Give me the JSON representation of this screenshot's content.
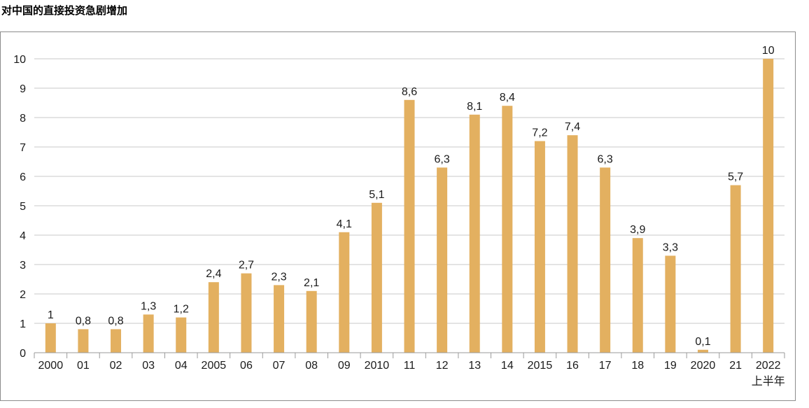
{
  "chart_data": {
    "type": "bar",
    "title": "对中国的直接投资急剧增加",
    "categories": [
      "2000",
      "01",
      "02",
      "03",
      "04",
      "2005",
      "06",
      "07",
      "08",
      "09",
      "2010",
      "11",
      "12",
      "13",
      "14",
      "2015",
      "16",
      "17",
      "18",
      "19",
      "2020",
      "21",
      "2022"
    ],
    "category_sublabels": {
      "22": "上半年"
    },
    "values": [
      1,
      0.8,
      0.8,
      1.3,
      1.2,
      2.4,
      2.7,
      2.3,
      2.1,
      4.1,
      5.1,
      8.6,
      6.3,
      8.1,
      8.4,
      7.2,
      7.4,
      6.3,
      3.9,
      3.3,
      0.1,
      5.7,
      10
    ],
    "value_labels": [
      "1",
      "0,8",
      "0,8",
      "1,3",
      "1,2",
      "2,4",
      "2,7",
      "2,3",
      "2,1",
      "4,1",
      "5,1",
      "8,6",
      "6,3",
      "8,1",
      "8,4",
      "7,2",
      "7,4",
      "6,3",
      "3,9",
      "3,3",
      "0,1",
      "5,7",
      "10"
    ],
    "ylim": [
      0,
      10
    ],
    "yticks": [
      "0",
      "1",
      "2",
      "3",
      "4",
      "5",
      "6",
      "7",
      "8",
      "9",
      "10"
    ],
    "grid": true,
    "xlabel": "",
    "ylabel": "",
    "bar_color": "#e3b060",
    "grid_color": "#c8c8c8"
  }
}
